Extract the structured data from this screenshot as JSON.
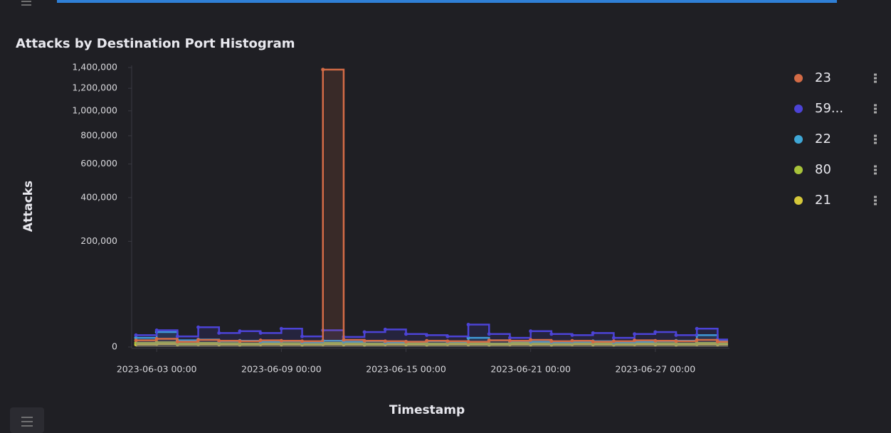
{
  "chart_data": {
    "type": "step",
    "title": "Attacks by Destination Port Histogram",
    "x_label": "Timestamp",
    "y_label": "Attacks",
    "scale": "sqrt",
    "x": [
      "2023-06-02 00:00",
      "2023-06-03 00:00",
      "2023-06-04 00:00",
      "2023-06-05 00:00",
      "2023-06-06 00:00",
      "2023-06-07 00:00",
      "2023-06-08 00:00",
      "2023-06-09 00:00",
      "2023-06-10 00:00",
      "2023-06-11 00:00",
      "2023-06-12 00:00",
      "2023-06-13 00:00",
      "2023-06-14 00:00",
      "2023-06-15 00:00",
      "2023-06-16 00:00",
      "2023-06-17 00:00",
      "2023-06-18 00:00",
      "2023-06-19 00:00",
      "2023-06-20 00:00",
      "2023-06-21 00:00",
      "2023-06-22 00:00",
      "2023-06-23 00:00",
      "2023-06-24 00:00",
      "2023-06-25 00:00",
      "2023-06-26 00:00",
      "2023-06-27 00:00",
      "2023-06-28 00:00",
      "2023-06-29 00:00",
      "2023-06-30 00:00"
    ],
    "xlim": [
      "2023-06-02 00:00",
      "2023-06-30 12:00"
    ],
    "xticks": [
      "2023-06-03 00:00",
      "2023-06-09 00:00",
      "2023-06-15 00:00",
      "2023-06-21 00:00",
      "2023-06-27 00:00"
    ],
    "ylim": [
      0,
      1400000
    ],
    "yticks": [
      0,
      {
        "value": 200000,
        "label": "200,000"
      },
      {
        "value": 400000,
        "label": "400,000"
      },
      {
        "value": 600000,
        "label": "600,000"
      },
      {
        "value": 800000,
        "label": "800,000"
      },
      {
        "value": 1000000,
        "label": "1,000,000"
      },
      {
        "value": 1200000,
        "label": "1,200,000"
      },
      {
        "value": 1400000,
        "label": "1,400,000"
      }
    ],
    "legend": "right",
    "series": [
      {
        "name": "23",
        "color": "#d36b46",
        "values": [
          800,
          1200,
          500,
          900,
          700,
          600,
          800,
          700,
          600,
          1380000,
          900,
          700,
          600,
          500,
          700,
          600,
          500,
          800,
          700,
          900,
          600,
          700,
          500,
          600,
          800,
          700,
          600,
          900,
          500
        ]
      },
      {
        "name": "59...",
        "color": "#4c43d6",
        "values": [
          2500,
          5000,
          2000,
          7000,
          3500,
          4500,
          3500,
          6000,
          2000,
          5000,
          1800,
          4000,
          5500,
          3000,
          2500,
          2000,
          9000,
          3000,
          1500,
          4500,
          3000,
          2500,
          3500,
          1500,
          3000,
          4000,
          2500,
          6000,
          1000
        ]
      },
      {
        "name": "22",
        "color": "#3fa7d6",
        "values": [
          1500,
          4000,
          800,
          1000,
          600,
          700,
          500,
          600,
          400,
          700,
          500,
          600,
          400,
          500,
          600,
          500,
          1500,
          800,
          600,
          500,
          400,
          500,
          600,
          400,
          500,
          600,
          700,
          2500,
          600
        ]
      },
      {
        "name": "80",
        "color": "#a8c33a",
        "values": [
          300,
          400,
          200,
          300,
          250,
          200,
          300,
          250,
          200,
          300,
          250,
          200,
          300,
          250,
          200,
          300,
          250,
          200,
          300,
          250,
          200,
          300,
          250,
          200,
          300,
          250,
          200,
          300,
          250
        ]
      },
      {
        "name": "21",
        "color": "#d5c83a",
        "values": [
          100,
          150,
          100,
          120,
          100,
          90,
          110,
          100,
          90,
          120,
          100,
          90,
          110,
          100,
          90,
          120,
          100,
          90,
          110,
          100,
          90,
          120,
          100,
          90,
          110,
          100,
          90,
          120,
          100
        ]
      }
    ]
  }
}
